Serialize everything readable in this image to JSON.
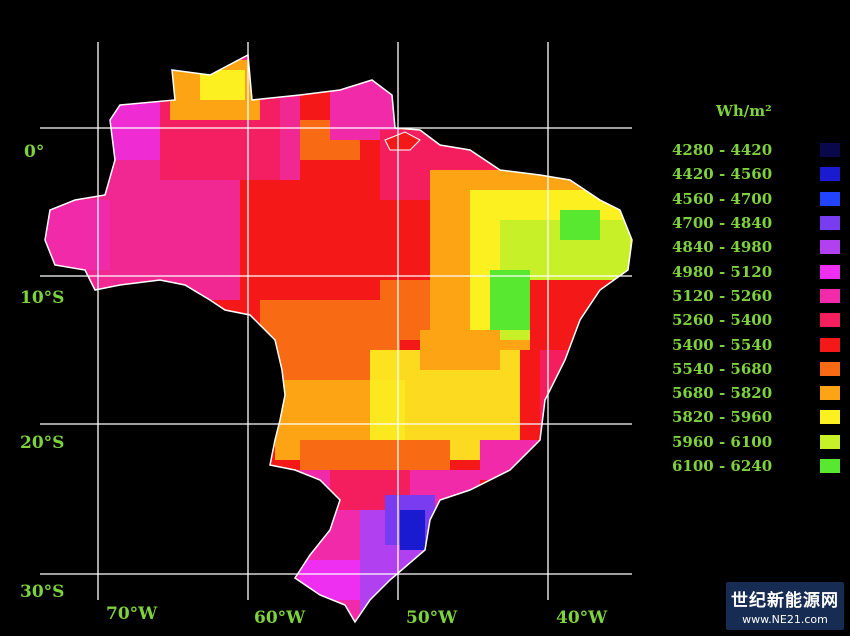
{
  "map": {
    "unit_label": "Wh/m²",
    "latitude_labels": [
      "0°",
      "10°S",
      "20°S",
      "30°S"
    ],
    "longitude_labels": [
      "70°W",
      "60°W",
      "50°W",
      "40°W"
    ],
    "legend": [
      {
        "range": "4280 - 4420",
        "color": "#08084a"
      },
      {
        "range": "4420 - 4560",
        "color": "#1a1ad0"
      },
      {
        "range": "4560 - 4700",
        "color": "#2244ff"
      },
      {
        "range": "4700 - 4840",
        "color": "#7a3cf0"
      },
      {
        "range": "4840 - 4980",
        "color": "#b040f0"
      },
      {
        "range": "4980 - 5120",
        "color": "#ee2ef0"
      },
      {
        "range": "5120 - 5260",
        "color": "#f02aa8"
      },
      {
        "range": "5260 - 5400",
        "color": "#f41e5e"
      },
      {
        "range": "5400 - 5540",
        "color": "#f41818"
      },
      {
        "range": "5540 - 5680",
        "color": "#f86a14"
      },
      {
        "range": "5680 - 5820",
        "color": "#fca414"
      },
      {
        "range": "5820 - 5960",
        "color": "#fcf020"
      },
      {
        "range": "5960 - 6100",
        "color": "#c8f028"
      },
      {
        "range": "6100 - 6240",
        "color": "#58e830"
      }
    ]
  },
  "watermark": {
    "line1": "世纪新能源网",
    "line2": "www.NE21.com"
  }
}
